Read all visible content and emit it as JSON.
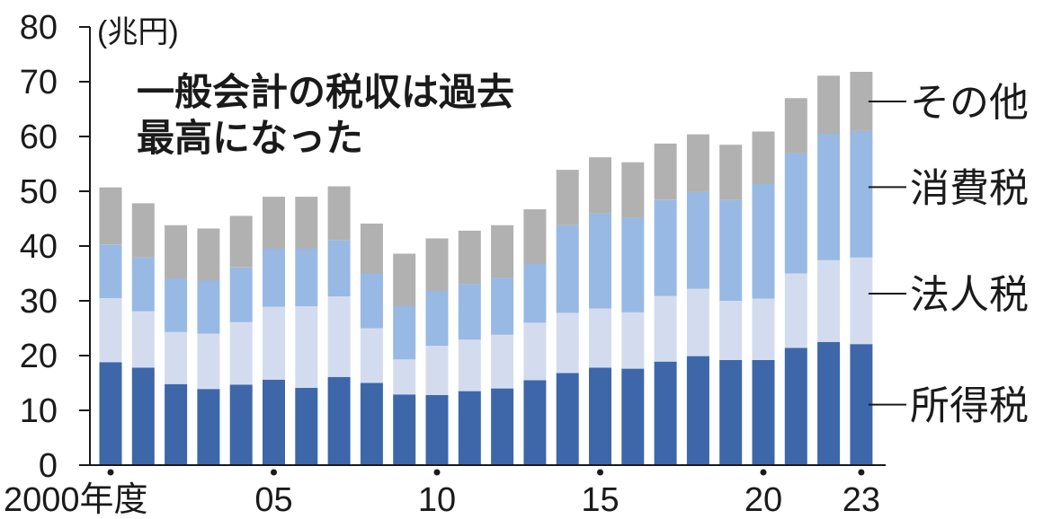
{
  "chart_data": {
    "type": "bar",
    "stacked": true,
    "title": "一般会計の税収は過去最高になった",
    "title_lines": [
      "一般会計の税収は過去",
      "最高になった"
    ],
    "unit_label": "(兆円)",
    "ylim": [
      0,
      80
    ],
    "y_ticks": [
      "80",
      "70",
      "60",
      "50",
      "40",
      "30",
      "20",
      "10",
      "0"
    ],
    "x_tick_labels": [
      {
        "index": 0,
        "label": "2000年度"
      },
      {
        "index": 5,
        "label": "05"
      },
      {
        "index": 10,
        "label": "10"
      },
      {
        "index": 15,
        "label": "15"
      },
      {
        "index": 20,
        "label": "20"
      },
      {
        "index": 23,
        "label": "23"
      }
    ],
    "categories": [
      "2000",
      "2001",
      "2002",
      "2003",
      "2004",
      "2005",
      "2006",
      "2007",
      "2008",
      "2009",
      "2010",
      "2011",
      "2012",
      "2013",
      "2014",
      "2015",
      "2016",
      "2017",
      "2018",
      "2019",
      "2020",
      "2021",
      "2022",
      "2023"
    ],
    "series": [
      {
        "name": "所得税",
        "color": "#3d67a8",
        "values": [
          18.8,
          17.8,
          14.8,
          13.9,
          14.7,
          15.6,
          14.1,
          16.1,
          15.0,
          12.9,
          12.8,
          13.5,
          14.0,
          15.5,
          16.8,
          17.8,
          17.6,
          18.9,
          19.9,
          19.2,
          19.2,
          21.4,
          22.5,
          22.1
        ]
      },
      {
        "name": "法人税",
        "color": "#d3dcef",
        "values": [
          11.7,
          10.3,
          9.5,
          10.1,
          11.4,
          13.3,
          14.9,
          14.7,
          10.0,
          6.4,
          9.0,
          9.4,
          9.8,
          10.5,
          11.0,
          10.8,
          10.3,
          12.0,
          12.3,
          10.8,
          11.2,
          13.6,
          14.9,
          15.8
        ]
      },
      {
        "name": "消費税",
        "color": "#98b9e3",
        "values": [
          9.8,
          9.8,
          9.8,
          9.7,
          10.0,
          10.6,
          10.5,
          10.3,
          10.0,
          9.8,
          10.0,
          10.2,
          10.4,
          10.8,
          16.0,
          17.4,
          17.2,
          17.5,
          17.7,
          18.4,
          21.0,
          21.9,
          23.1,
          23.1
        ]
      },
      {
        "name": "その他",
        "color": "#b1b1b1",
        "values": [
          10.4,
          9.9,
          9.7,
          9.5,
          9.4,
          9.5,
          9.5,
          9.8,
          9.1,
          9.5,
          9.6,
          9.7,
          9.6,
          9.9,
          10.1,
          10.2,
          10.2,
          10.3,
          10.5,
          10.1,
          9.5,
          10.1,
          10.6,
          10.8
        ]
      }
    ],
    "legend": {
      "placement": "right",
      "order": [
        "その他",
        "消費税",
        "法人税",
        "所得税"
      ]
    }
  }
}
